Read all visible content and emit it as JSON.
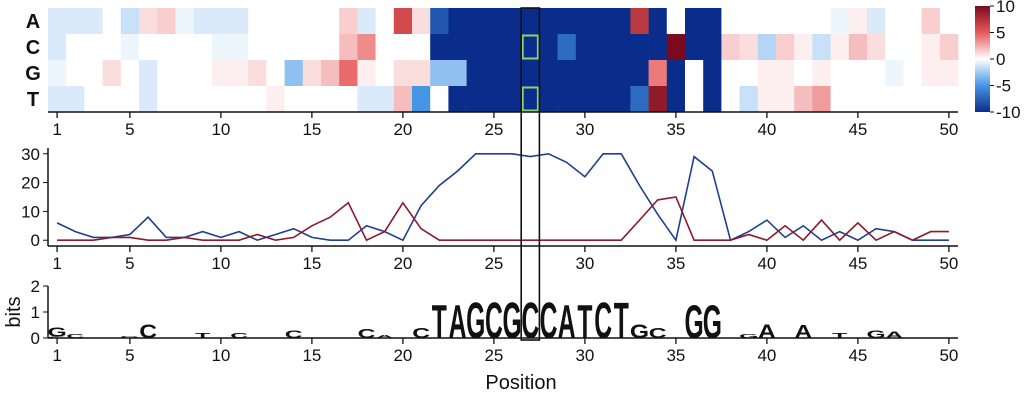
{
  "chart_data": [
    {
      "type": "heatmap",
      "title": "",
      "x": [
        1,
        2,
        3,
        4,
        5,
        6,
        7,
        8,
        9,
        10,
        11,
        12,
        13,
        14,
        15,
        16,
        17,
        18,
        19,
        20,
        21,
        22,
        23,
        24,
        25,
        26,
        27,
        28,
        29,
        30,
        31,
        32,
        33,
        34,
        35,
        36,
        37,
        38,
        39,
        40,
        41,
        42,
        43,
        44,
        45,
        46,
        47,
        48,
        49,
        50
      ],
      "x_ticks": [
        "1",
        "5",
        "10",
        "15",
        "20",
        "25",
        "30",
        "35",
        "40",
        "45",
        "50"
      ],
      "rows": [
        "A",
        "C",
        "G",
        "T"
      ],
      "colorbar": {
        "min": -10,
        "max": 10,
        "ticks": [
          "10",
          "5",
          "0",
          "-5",
          "-10"
        ],
        "low_color": "#0a2d8c",
        "mid_color": "#ffffff",
        "high_color": "#7a0a1e"
      },
      "values": [
        [
          -1,
          -1,
          -1,
          0,
          -1.5,
          1,
          1.5,
          -0.5,
          -1,
          -1,
          -1,
          0,
          0,
          0,
          0,
          0,
          1.5,
          -1,
          0,
          6,
          1,
          -8,
          -10,
          -10,
          -10,
          -10,
          -10,
          -10,
          -10,
          -10,
          -10,
          -10,
          7,
          -10,
          0,
          -10,
          -10,
          0,
          0,
          0,
          0,
          0,
          0,
          -0.5,
          0.5,
          -1,
          0,
          0,
          1.5,
          0
        ],
        [
          -1,
          0,
          0,
          0,
          -0.5,
          0,
          0,
          0,
          0,
          -0.5,
          -0.5,
          0,
          0,
          0,
          0,
          0,
          2,
          3.5,
          0,
          0,
          0,
          -10,
          -10,
          -10,
          -10,
          -10,
          -10,
          -10,
          -7,
          -10,
          -10,
          -10,
          -10,
          -10,
          10,
          -10,
          -10,
          1.5,
          1,
          -2,
          1.5,
          0.5,
          -1.5,
          0.5,
          2,
          1,
          0,
          0,
          0.5,
          1.5
        ],
        [
          -0.5,
          0,
          0,
          1,
          0,
          -1,
          0,
          0,
          0,
          0.5,
          0.5,
          1,
          0,
          -3,
          1,
          2,
          4.5,
          0.5,
          0,
          1,
          1,
          -3,
          -3,
          -10,
          -10,
          -10,
          -10,
          -10,
          -10,
          -10,
          -10,
          -10,
          -10,
          4,
          -10,
          0,
          -10,
          0,
          0,
          0.5,
          0.5,
          0,
          0.5,
          0,
          0,
          0,
          -0.5,
          0,
          0.5,
          0.5
        ],
        [
          -1,
          -1,
          0,
          0,
          0,
          -1,
          0,
          0,
          0,
          0,
          0,
          0,
          0.5,
          0,
          0,
          0,
          0,
          -1,
          -1,
          2,
          -5,
          0,
          -10,
          -10,
          -10,
          -10,
          -10,
          -10,
          -10,
          -10,
          -10,
          -10,
          -7,
          9,
          -10,
          0,
          -10,
          0,
          -1.5,
          0.5,
          0.5,
          2,
          3,
          0,
          0,
          0,
          0,
          0,
          0,
          0
        ]
      ],
      "highlight_position": 27,
      "highlight_rows": [
        "C",
        "T"
      ]
    },
    {
      "type": "line",
      "title": "",
      "xlabel": "",
      "ylabel": "",
      "x": [
        1,
        2,
        3,
        4,
        5,
        6,
        7,
        8,
        9,
        10,
        11,
        12,
        13,
        14,
        15,
        16,
        17,
        18,
        19,
        20,
        21,
        22,
        23,
        24,
        25,
        26,
        27,
        28,
        29,
        30,
        31,
        32,
        33,
        34,
        35,
        36,
        37,
        38,
        39,
        40,
        41,
        42,
        43,
        44,
        45,
        46,
        47,
        48,
        49,
        50
      ],
      "x_ticks": [
        "1",
        "5",
        "10",
        "15",
        "20",
        "25",
        "30",
        "35",
        "40",
        "45",
        "50"
      ],
      "y_ticks": [
        "0",
        "10",
        "20",
        "30"
      ],
      "ylim": [
        -2,
        32
      ],
      "series": [
        {
          "color": "#1f3f8f",
          "values": [
            6,
            3,
            1,
            1,
            2,
            8,
            1,
            1,
            3,
            1,
            3,
            0,
            2,
            4,
            1,
            0,
            0,
            5,
            3,
            0,
            12,
            19,
            24,
            30,
            30,
            30,
            29,
            30,
            27,
            22,
            30,
            30,
            19,
            9,
            0,
            29,
            24,
            0,
            3,
            7,
            1,
            5,
            0,
            3,
            0,
            4,
            3,
            0,
            0,
            0
          ]
        },
        {
          "color": "#8b1a2e",
          "values": [
            0,
            0,
            0,
            1,
            1,
            0,
            0,
            1,
            0,
            0,
            0,
            2,
            0,
            1,
            5,
            8,
            13,
            0,
            3,
            13,
            4,
            0,
            0,
            0,
            0,
            0,
            0,
            0,
            0,
            0,
            0,
            0,
            7,
            14,
            15,
            0,
            0,
            0,
            2,
            0,
            5,
            0,
            7,
            0,
            6,
            0,
            3,
            0,
            3,
            3
          ]
        }
      ]
    },
    {
      "type": "sequence_logo",
      "title": "",
      "xlabel": "Position",
      "ylabel": "bits",
      "ylim": [
        0,
        2
      ],
      "y_ticks": [
        "0",
        "1",
        "2"
      ],
      "x_ticks": [
        "1",
        "5",
        "10",
        "15",
        "20",
        "25",
        "30",
        "35",
        "40",
        "45",
        "50"
      ],
      "letter_colors": {
        "A": "#2e9e2e",
        "C": "#2b3fd6",
        "G": "#f0a020",
        "T": "#d41c1c"
      },
      "positions": [
        {
          "pos": 1,
          "letters": [
            [
              "C",
              0.06
            ],
            [
              "G",
              0.35
            ]
          ]
        },
        {
          "pos": 2,
          "letters": [
            [
              "C",
              0.15
            ]
          ]
        },
        {
          "pos": 5,
          "letters": [
            [
              "G",
              0.08
            ]
          ]
        },
        {
          "pos": 6,
          "letters": [
            [
              "C",
              0.55
            ]
          ]
        },
        {
          "pos": 9,
          "letters": [
            [
              "T",
              0.2
            ]
          ]
        },
        {
          "pos": 11,
          "letters": [
            [
              "C",
              0.2
            ]
          ]
        },
        {
          "pos": 14,
          "letters": [
            [
              "C",
              0.3
            ]
          ]
        },
        {
          "pos": 18,
          "letters": [
            [
              "C",
              0.35
            ]
          ]
        },
        {
          "pos": 19,
          "letters": [
            [
              "A",
              0.12
            ]
          ]
        },
        {
          "pos": 21,
          "letters": [
            [
              "C",
              0.4
            ]
          ]
        },
        {
          "pos": 22,
          "letters": [
            [
              "T",
              1.3
            ]
          ]
        },
        {
          "pos": 23,
          "letters": [
            [
              "A",
              1.3
            ]
          ]
        },
        {
          "pos": 24,
          "letters": [
            [
              "G",
              1.4
            ]
          ]
        },
        {
          "pos": 25,
          "letters": [
            [
              "C",
              1.4
            ]
          ]
        },
        {
          "pos": 26,
          "letters": [
            [
              "G",
              1.4
            ]
          ]
        },
        {
          "pos": 27,
          "letters": [
            [
              "C",
              1.4
            ]
          ]
        },
        {
          "pos": 28,
          "letters": [
            [
              "C",
              1.4
            ]
          ]
        },
        {
          "pos": 29,
          "letters": [
            [
              "A",
              1.3
            ]
          ]
        },
        {
          "pos": 30,
          "letters": [
            [
              "T",
              1.3
            ]
          ]
        },
        {
          "pos": 31,
          "letters": [
            [
              "C",
              1.4
            ]
          ]
        },
        {
          "pos": 32,
          "letters": [
            [
              "T",
              1.4
            ]
          ]
        },
        {
          "pos": 33,
          "letters": [
            [
              "G",
              0.55
            ]
          ]
        },
        {
          "pos": 34,
          "letters": [
            [
              "C",
              0.4
            ]
          ]
        },
        {
          "pos": 36,
          "letters": [
            [
              "G",
              1.3
            ]
          ]
        },
        {
          "pos": 37,
          "letters": [
            [
              "G",
              1.3
            ]
          ]
        },
        {
          "pos": 39,
          "letters": [
            [
              "G",
              0.15
            ]
          ]
        },
        {
          "pos": 40,
          "letters": [
            [
              "A",
              0.55
            ]
          ]
        },
        {
          "pos": 42,
          "letters": [
            [
              "A",
              0.5
            ]
          ]
        },
        {
          "pos": 44,
          "letters": [
            [
              "T",
              0.2
            ]
          ]
        },
        {
          "pos": 46,
          "letters": [
            [
              "G",
              0.3
            ]
          ]
        },
        {
          "pos": 47,
          "letters": [
            [
              "A",
              0.25
            ]
          ]
        }
      ]
    }
  ]
}
